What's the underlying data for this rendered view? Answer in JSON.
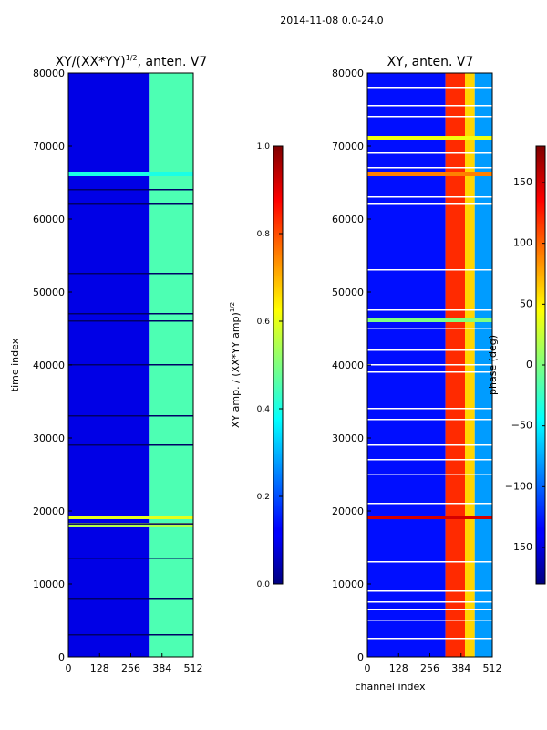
{
  "figure": {
    "suptitle": "2014-11-08 0.0-24.0"
  },
  "chart_data": [
    {
      "type": "heatmap",
      "title_main": "XY/(XX*YY)",
      "title_exp": "1/2",
      "title_suffix": ", anten. V7",
      "ylabel": "time index",
      "xlabel": "",
      "xlim": [
        0,
        512
      ],
      "ylim": [
        0,
        80000
      ],
      "xticks": [
        0,
        128,
        256,
        384,
        512
      ],
      "yticks": [
        0,
        10000,
        20000,
        30000,
        40000,
        50000,
        60000,
        70000,
        80000
      ],
      "value_range": [
        0.0,
        1.0
      ],
      "colormap": "jet",
      "colorbar": {
        "label_main": "XY amp. / (XX*YY amp)",
        "label_exp": "1/2",
        "ticks": [
          "0.0",
          "0.2",
          "0.4",
          "0.6",
          "0.8",
          "1.0"
        ],
        "tick_values": [
          0.0,
          0.2,
          0.4,
          0.6,
          0.8,
          1.0
        ]
      },
      "bands": [
        {
          "x": [
            0,
            330
          ],
          "value": 0.1
        },
        {
          "x": [
            330,
            512
          ],
          "value": 0.45
        }
      ],
      "highlight_rows": [
        {
          "time": 66000,
          "value": 0.4
        },
        {
          "time": 19000,
          "value": 0.6
        },
        {
          "time": 18000,
          "value": 0.55
        }
      ],
      "gap_rows": [
        64000,
        62000,
        52500,
        47000,
        46000,
        40000,
        33000,
        29000,
        18200,
        13500,
        8000,
        3000
      ]
    },
    {
      "type": "heatmap",
      "title": "XY, anten. V7",
      "ylabel": "",
      "xlabel": "channel index",
      "xlim": [
        0,
        512
      ],
      "ylim": [
        0,
        80000
      ],
      "xticks": [
        0,
        128,
        256,
        384,
        512
      ],
      "yticks": [
        0,
        10000,
        20000,
        30000,
        40000,
        50000,
        60000,
        70000,
        80000
      ],
      "value_range": [
        -180,
        180
      ],
      "colormap": "jet",
      "colorbar": {
        "label": "phase (deg)",
        "ticks": [
          "−150",
          "−100",
          "−50",
          "0",
          "50",
          "100",
          "150"
        ],
        "tick_values": [
          -150,
          -100,
          -50,
          0,
          50,
          100,
          150
        ]
      },
      "bands": [
        {
          "x": [
            0,
            320
          ],
          "value": -130
        },
        {
          "x": [
            320,
            400
          ],
          "value": 120
        },
        {
          "x": [
            400,
            440
          ],
          "value": 60
        },
        {
          "x": [
            440,
            512
          ],
          "value": -80
        }
      ],
      "highlight_rows": [
        {
          "time": 19000,
          "value": 150
        },
        {
          "time": 46000,
          "value": 0
        },
        {
          "time": 71000,
          "value": 40
        },
        {
          "time": 66000,
          "value": 90
        }
      ],
      "gap_rows": [
        78000,
        75500,
        74000,
        69000,
        67000,
        63000,
        62000,
        53000,
        47500,
        45000,
        42000,
        40000,
        39000,
        34000,
        32500,
        29000,
        27000,
        25000,
        21000,
        13000,
        9000,
        7500,
        6500,
        5000,
        2500
      ]
    }
  ]
}
